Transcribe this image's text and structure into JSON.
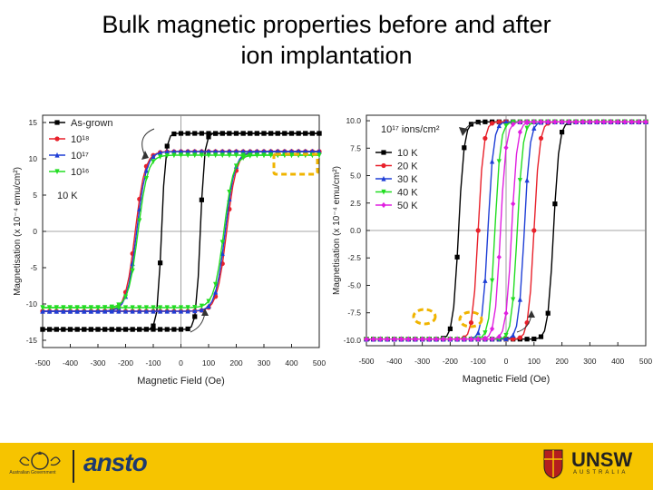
{
  "slide": {
    "title_line1": "Bulk magnetic properties before and after",
    "title_line2": "ion implantation"
  },
  "footer": {
    "gov_label": "Australian Government",
    "ansto_label": "ansto",
    "unsw_label": "UNSW",
    "unsw_sub": "AUSTRALIA",
    "bg_color": "#f6c400"
  },
  "chart_data": [
    {
      "type": "line",
      "title": "",
      "xlabel": "Magnetic Field (Oe)",
      "ylabel": "Magnetisation (x 10⁻⁴ emu/cm²)",
      "xlim": [
        -500,
        500
      ],
      "ylim": [
        -16,
        16
      ],
      "xticks": [
        -500,
        -400,
        -300,
        -200,
        -100,
        0,
        100,
        200,
        300,
        400,
        500
      ],
      "yticks": [
        -15,
        -10,
        -5,
        0,
        5,
        10,
        15
      ],
      "annotation": "10 K",
      "series": [
        {
          "name": "As-grown",
          "color": "#000000",
          "marker": "square",
          "Ms": 13.5,
          "Hc": 70,
          "w": 15
        },
        {
          "name": "10¹⁸",
          "color": "#e8212b",
          "marker": "circle",
          "Ms": 11,
          "Hc": 165,
          "w": 35
        },
        {
          "name": "10¹⁷",
          "color": "#1f3fd6",
          "marker": "triangle-up",
          "Ms": 11,
          "Hc": 160,
          "w": 35
        },
        {
          "name": "10¹⁶",
          "color": "#22dd22",
          "marker": "triangle-down",
          "Ms": 10.5,
          "Hc": 155,
          "w": 35
        }
      ]
    },
    {
      "type": "line",
      "title": "",
      "xlabel": "Magnetic Field (Oe)",
      "ylabel": "Magnetisation (x 10⁻⁴ emu/cm²)",
      "xlim": [
        -500,
        500
      ],
      "ylim": [
        -10.5,
        10.5
      ],
      "xticks": [
        -500,
        -400,
        -300,
        -200,
        -100,
        0,
        100,
        200,
        300,
        400,
        500
      ],
      "yticks": [
        -10,
        -7.5,
        -5,
        -2.5,
        0,
        2.5,
        5,
        7.5,
        10
      ],
      "annotation": "10¹⁷ ions/cm²",
      "series": [
        {
          "name": "10 K",
          "color": "#000000",
          "marker": "square",
          "Ms": 9.9,
          "Hc": 170,
          "w": 20
        },
        {
          "name": "20 K",
          "color": "#e8212b",
          "marker": "circle",
          "Ms": 9.9,
          "Hc": 100,
          "w": 20
        },
        {
          "name": "30 K",
          "color": "#1f3fd6",
          "marker": "triangle-up",
          "Ms": 9.9,
          "Hc": 65,
          "w": 20
        },
        {
          "name": "40 K",
          "color": "#22dd22",
          "marker": "triangle-down",
          "Ms": 9.9,
          "Hc": 40,
          "w": 20
        },
        {
          "name": "50 K",
          "color": "#e020e0",
          "marker": "diamond",
          "Ms": 9.9,
          "Hc": 20,
          "w": 20
        }
      ]
    }
  ]
}
